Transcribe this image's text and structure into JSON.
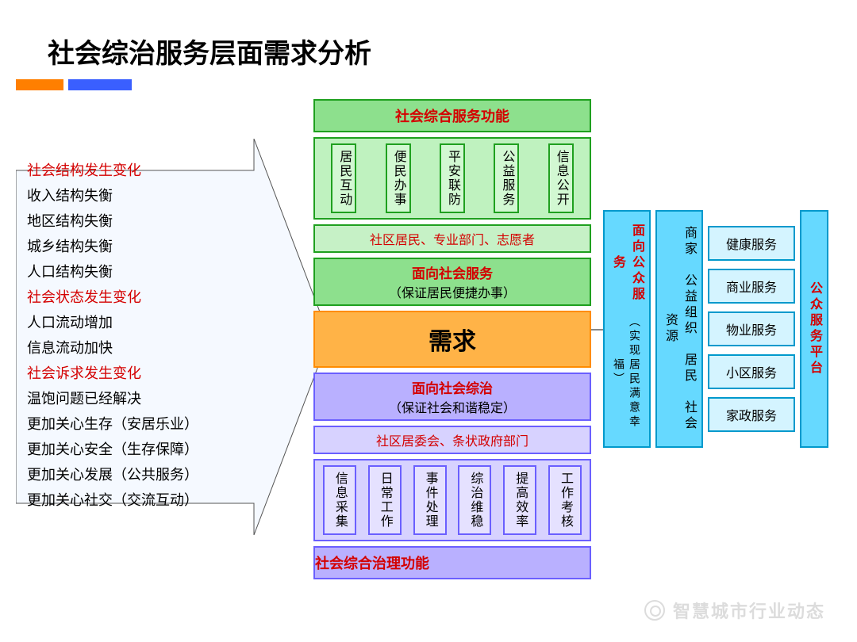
{
  "title": "社会综治服务层面需求分析",
  "accent_colors": {
    "bar1": "#ff7f00",
    "bar2": "#3a5fff"
  },
  "left_list": [
    {
      "text": "社会结构发生变化",
      "red": true
    },
    {
      "text": "收入结构失衡",
      "red": false
    },
    {
      "text": "地区结构失衡",
      "red": false
    },
    {
      "text": "城乡结构失衡",
      "red": false
    },
    {
      "text": "人口结构失衡",
      "red": false
    },
    {
      "text": "社会状态发生变化",
      "red": true
    },
    {
      "text": "人口流动增加",
      "red": false
    },
    {
      "text": "信息流动加快",
      "red": false
    },
    {
      "text": "社会诉求发生变化",
      "red": true
    },
    {
      "text": "温饱问题已经解决",
      "red": false
    },
    {
      "text": "更加关心生存（安居乐业）",
      "red": false
    },
    {
      "text": "更加关心安全（生存保障）",
      "red": false
    },
    {
      "text": "更加关心发展（公共服务）",
      "red": false
    },
    {
      "text": "更加关心社交（交流互动）",
      "red": false
    }
  ],
  "center": {
    "top_header": "社会综合服务功能",
    "top_items": [
      "居民互动",
      "便民办事",
      "平安联防",
      "公益服务",
      "信息公开"
    ],
    "top_sub": "社区居民、专业部门、志愿者",
    "service_box_title": "面向社会服务",
    "service_box_sub": "（保证居民便捷办事）",
    "need": "需求",
    "gov_box_title": "面向社会综治",
    "gov_box_sub": "（保证社会和谐稳定）",
    "bottom_sub": "社区居委会、条状政府部门",
    "bottom_items": [
      "信息采集",
      "日常工作",
      "事件处理",
      "综治维稳",
      "提高效率",
      "工作考核"
    ],
    "bottom_header": "社会综合治理功能"
  },
  "right": {
    "col1_title": "面向公众服务",
    "col1_sub": "（实现居民满意幸福）",
    "col2": "商家　公益组织　居民　社会资源",
    "services": [
      "健康服务",
      "商业服务",
      "物业服务",
      "小区服务",
      "家政服务"
    ],
    "platform": "公众服务平台"
  },
  "watermark": "智慧城市行业动态",
  "colors": {
    "green_border": "#1fa01f",
    "green_fill": "#8de08d",
    "green_light": "#c6f1c6",
    "purple_border": "#6a5fff",
    "purple_fill": "#b9b0ff",
    "purple_light": "#d7d2ff",
    "cyan_border": "#0099cc",
    "cyan_fill": "#66d9ff",
    "cyan_light": "#d4f4ff",
    "orange_border": "#ff8c00",
    "orange_fill": "#ffb347",
    "red_text": "#d40000"
  }
}
